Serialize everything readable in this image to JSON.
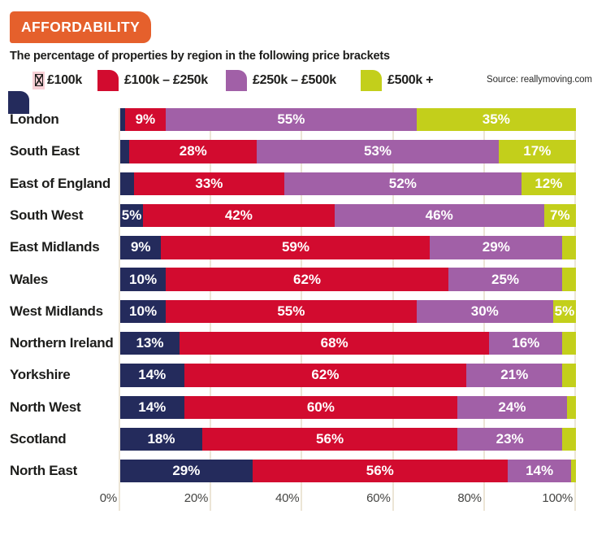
{
  "badge": {
    "label": "AFFORDABILITY"
  },
  "subtitle": "The percentage of properties by region in the following price brackets",
  "source": "Source: reallymoving.com",
  "legend": {
    "items": [
      {
        "label": "£100k",
        "color_key": "navy",
        "missing_glyph_prefix": true
      },
      {
        "label": "£100k – £250k",
        "color_key": "red"
      },
      {
        "label": "£250k – £500k",
        "color_key": "purple"
      },
      {
        "label": "£500k +",
        "color_key": "green"
      }
    ]
  },
  "colors": {
    "navy": "#242b5c",
    "red": "#d20b2f",
    "purple": "#a160a7",
    "green": "#c3cf1b",
    "orange": "#e5602c",
    "pink_highlight": "#f8d0d6",
    "gridline": "#ece5d6",
    "text_dark": "#1d1d1b",
    "axis_text": "#454543",
    "bar_label": "#ffffff"
  },
  "axis": {
    "ticks": [
      "0%",
      "20%",
      "40%",
      "60%",
      "80%",
      "100%"
    ]
  },
  "chart_data": {
    "type": "bar",
    "variant": "horizontal-stacked",
    "title": "AFFORDABILITY",
    "subtitle": "The percentage of properties by region in the following price brackets",
    "xlim": [
      0,
      100
    ],
    "x_ticks": [
      "0%",
      "20%",
      "40%",
      "60%",
      "80%",
      "100%"
    ],
    "grid": true,
    "legend_position": "top",
    "stack_total": 100,
    "label_rule": "percentage label shown inside segment only when value >= 5",
    "categories": [
      "London",
      "South East",
      "East of England",
      "South West",
      "East Midlands",
      "Wales",
      "West Midlands",
      "Northern Ireland",
      "Yorkshire",
      "North West",
      "Scotland",
      "North East"
    ],
    "series": [
      {
        "name": "£100k",
        "color_key": "navy",
        "values": [
          1,
          2,
          3,
          5,
          9,
          10,
          10,
          13,
          14,
          14,
          18,
          29
        ]
      },
      {
        "name": "£100k – £250k",
        "color_key": "red",
        "values": [
          9,
          28,
          33,
          42,
          59,
          62,
          55,
          68,
          62,
          60,
          56,
          56
        ]
      },
      {
        "name": "£250k – £500k",
        "color_key": "purple",
        "values": [
          55,
          53,
          52,
          46,
          29,
          25,
          30,
          16,
          21,
          24,
          23,
          14
        ]
      },
      {
        "name": "£500k +",
        "color_key": "green",
        "values": [
          35,
          17,
          12,
          7,
          3,
          3,
          5,
          3,
          3,
          2,
          3,
          1
        ]
      }
    ]
  }
}
